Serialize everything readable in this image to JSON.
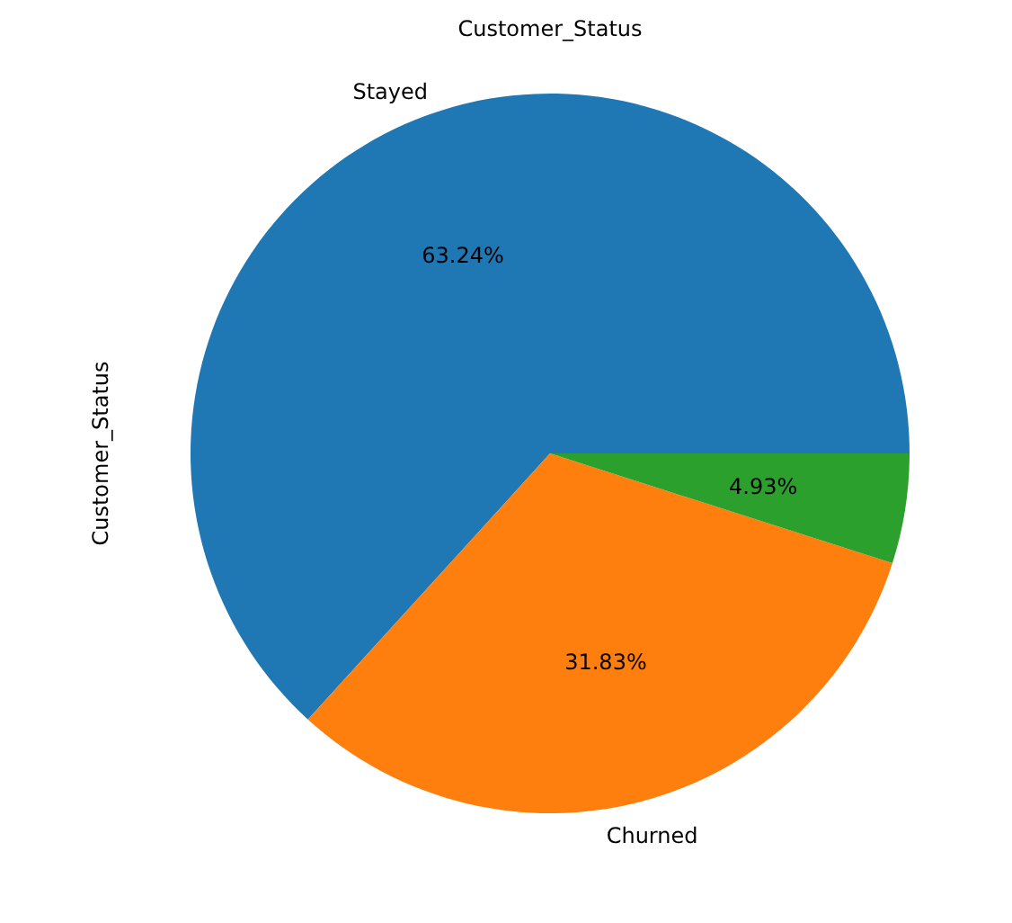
{
  "chart_data": {
    "type": "pie",
    "title": "Customer_Status",
    "ylabel": "Customer_Status",
    "categories": [
      "Stayed",
      "Churned",
      null
    ],
    "values": [
      63.24,
      31.83,
      4.93
    ],
    "colors": [
      "#1f77b4",
      "#ff7f0e",
      "#2ca02c"
    ],
    "value_labels": [
      "63.24%",
      "31.83%",
      "4.93%"
    ],
    "legend": false
  }
}
